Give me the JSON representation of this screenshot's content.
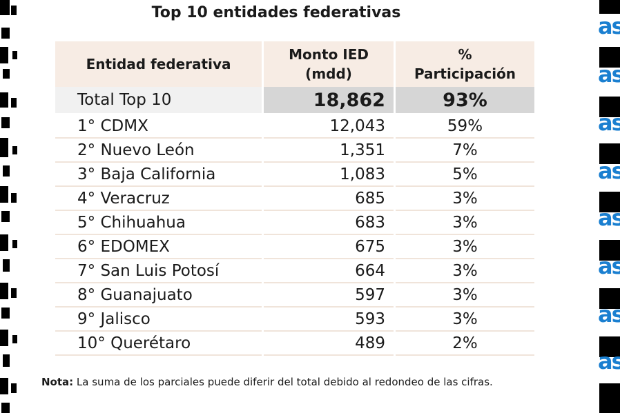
{
  "title": "Top 10 entidades federativas",
  "headers": {
    "entity": "Entidad federativa",
    "amount_line1": "Monto IED",
    "amount_line2": "(mdd)",
    "share_line1": "%",
    "share_line2": "Participación"
  },
  "total": {
    "label": "Total Top 10",
    "amount": "18,862",
    "share": "93%"
  },
  "rows": [
    {
      "rank": "1°",
      "name": "CDMX",
      "amount": "12,043",
      "share": "59%"
    },
    {
      "rank": "2°",
      "name": "Nuevo León",
      "amount": "1,351",
      "share": "7%"
    },
    {
      "rank": "3°",
      "name": "Baja California",
      "amount": "1,083",
      "share": "5%"
    },
    {
      "rank": "4°",
      "name": "Veracruz",
      "amount": "685",
      "share": "3%"
    },
    {
      "rank": "5°",
      "name": "Chihuahua",
      "amount": "683",
      "share": "3%"
    },
    {
      "rank": "6°",
      "name": "EDOMEX",
      "amount": "675",
      "share": "3%"
    },
    {
      "rank": "7°",
      "name": "San Luis Potosí",
      "amount": "664",
      "share": "3%"
    },
    {
      "rank": "8°",
      "name": "Guanajuato",
      "amount": "597",
      "share": "3%"
    },
    {
      "rank": "9°",
      "name": "Jalisco",
      "amount": "593",
      "share": "3%"
    },
    {
      "rank": "10°",
      "name": "Querétaro",
      "amount": "489",
      "share": "2%"
    }
  ],
  "note": {
    "label": "Nota:",
    "text": " La suma de los parciales puede diferir del total debido al redondeo de las cifras."
  },
  "right_fragment": "as",
  "colors": {
    "header_bg": "#f7ece4",
    "total_bg": "#d6d6d6",
    "row_border": "#f0e4da",
    "fragment_blue": "#1a7fd0"
  }
}
